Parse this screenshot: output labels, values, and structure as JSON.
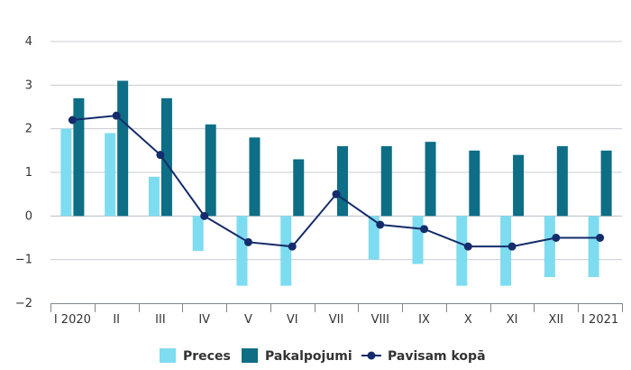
{
  "chart_data": {
    "type": "bar",
    "title": "",
    "xlabel": "",
    "ylabel": "",
    "categories": [
      "I 2020",
      "II",
      "III",
      "IV",
      "V",
      "VI",
      "VII",
      "VIII",
      "IX",
      "X",
      "XI",
      "XII",
      "I 2021"
    ],
    "ylim": [
      -2,
      4
    ],
    "y_ticks": [
      4,
      3,
      2,
      1,
      0,
      -1,
      -2
    ],
    "y_tick_labels": [
      "4",
      "3",
      "2",
      "1",
      "0",
      "−1",
      "−2"
    ],
    "grid": true,
    "legend_position": "bottom",
    "series": [
      {
        "name": "Preces",
        "type": "bar",
        "color": "#7ddcf0",
        "values": [
          2.0,
          1.9,
          0.9,
          -0.8,
          -1.6,
          -1.6,
          0.0,
          -1.0,
          -1.1,
          -1.6,
          -1.6,
          -1.4,
          -1.4
        ]
      },
      {
        "name": "Pakalpojumi",
        "type": "bar",
        "color": "#0d6e85",
        "values": [
          2.7,
          3.1,
          2.7,
          2.1,
          1.8,
          1.3,
          1.6,
          1.6,
          1.7,
          1.5,
          1.4,
          1.6,
          1.5
        ]
      },
      {
        "name": "Pavisam kopā",
        "type": "line",
        "color": "#142c6b",
        "values": [
          2.2,
          2.3,
          1.4,
          0.0,
          -0.6,
          -0.7,
          0.5,
          -0.2,
          -0.3,
          -0.7,
          -0.7,
          -0.5,
          -0.5
        ]
      }
    ]
  }
}
